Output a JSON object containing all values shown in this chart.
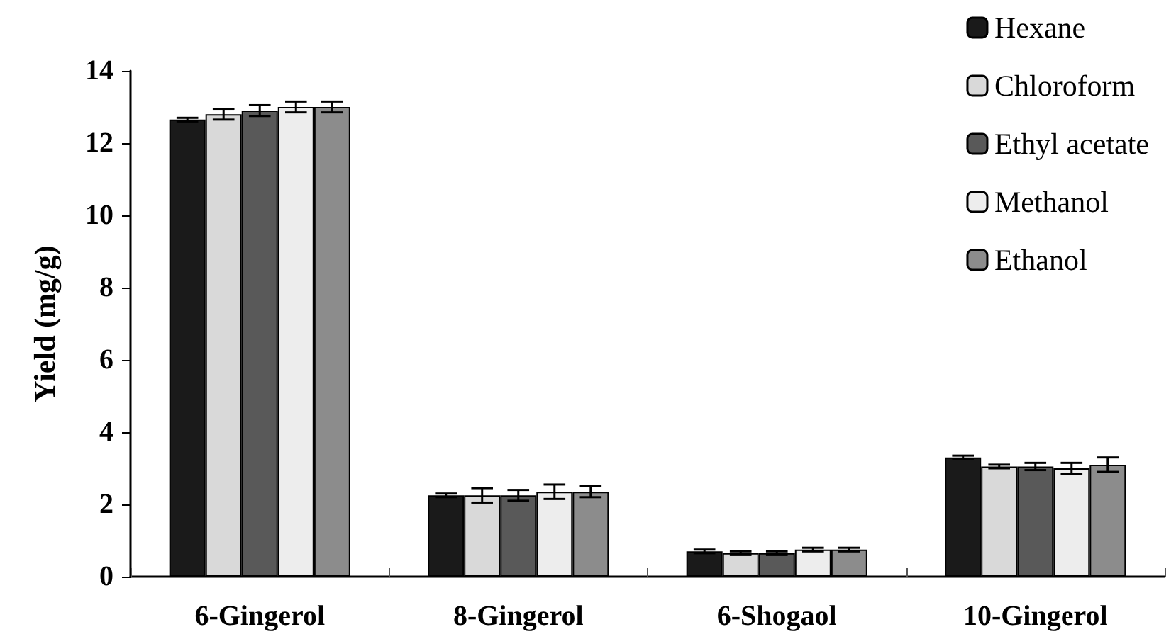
{
  "chart_data": {
    "type": "bar",
    "ylabel": "Yield (mg/g)",
    "categories": [
      "6-Gingerol",
      "8-Gingerol",
      "6-Shogaol",
      "10-Gingerol"
    ],
    "series": [
      {
        "name": "Hexane",
        "color": "#1a1a1a",
        "values": [
          12.65,
          2.25,
          0.7,
          3.3
        ],
        "errors": [
          0.05,
          0.05,
          0.05,
          0.05
        ]
      },
      {
        "name": "Chloroform",
        "color": "#d9d9d9",
        "values": [
          12.8,
          2.25,
          0.65,
          3.05
        ],
        "errors": [
          0.15,
          0.2,
          0.05,
          0.05
        ]
      },
      {
        "name": "Ethyl acetate",
        "color": "#595959",
        "values": [
          12.9,
          2.25,
          0.65,
          3.05
        ],
        "errors": [
          0.15,
          0.15,
          0.05,
          0.1
        ]
      },
      {
        "name": "Methanol",
        "color": "#ededed",
        "values": [
          13.0,
          2.35,
          0.75,
          3.0
        ],
        "errors": [
          0.15,
          0.2,
          0.05,
          0.15
        ]
      },
      {
        "name": "Ethanol",
        "color": "#8c8c8c",
        "values": [
          13.0,
          2.35,
          0.75,
          3.1
        ],
        "errors": [
          0.15,
          0.15,
          0.05,
          0.2
        ]
      }
    ],
    "ylim": [
      0,
      14
    ],
    "yticks": [
      0,
      2,
      4,
      6,
      8,
      10,
      12,
      14
    ],
    "grid": false,
    "legend": "top right"
  }
}
